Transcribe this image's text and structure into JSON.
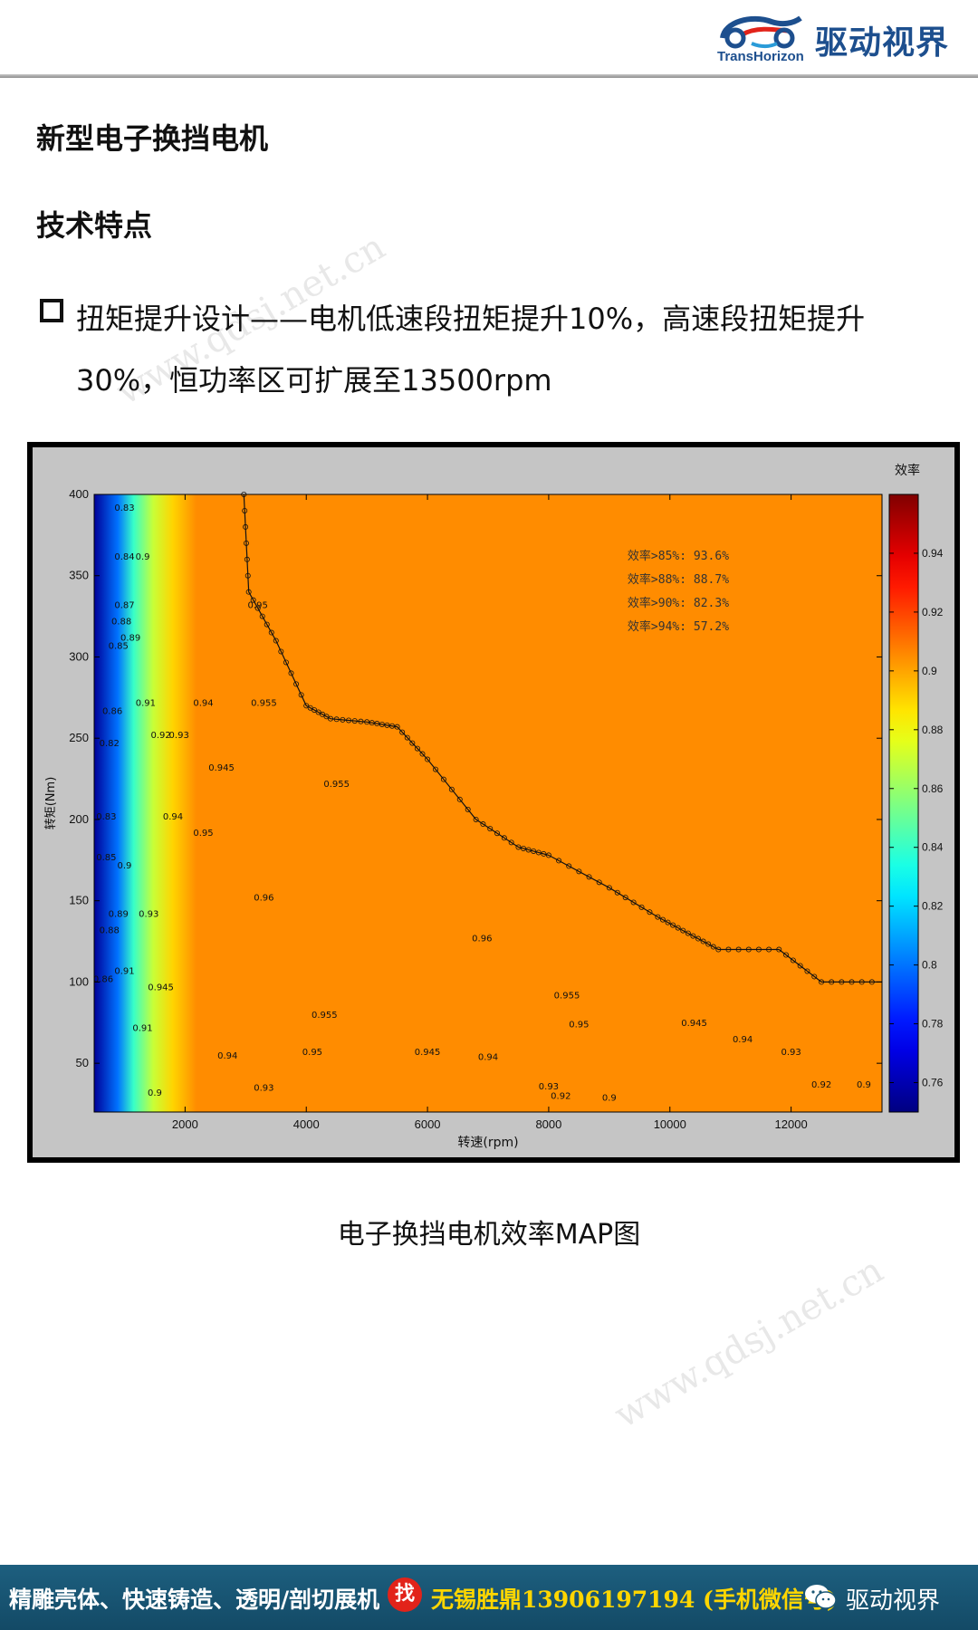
{
  "header": {
    "brand_en": "TransHorizon",
    "brand_cn": "驱动视界",
    "logo_colors": [
      "#1d4f8e",
      "#e2231a",
      "#2a9bd8"
    ]
  },
  "title": "新型电子换挡电机",
  "subtitle": "技术特点",
  "bullet": "扭矩提升设计——电机低速段扭矩提升10%，高速段扭矩提升30%，恒功率区可扩展至13500rpm",
  "watermark": "www.qdsj.net.cn",
  "caption": "电子换挡电机效率MAP图",
  "footer": {
    "left_text": "精雕壳体、快速铸造、透明/剖切展机",
    "badge": "找",
    "right_text": "无锡胜鼎13906197194 (手机微信号)",
    "brand": "驱动视界",
    "icon": "wechat-icon",
    "bg_color": "#1a5674",
    "highlight_color": "#ffd600"
  },
  "chart_data": {
    "type": "heatmap",
    "title": "",
    "xlabel": "转速(rpm)",
    "ylabel": "转矩(Nm)",
    "xlim": [
      500,
      13500
    ],
    "ylim": [
      20,
      400
    ],
    "xticks": [
      2000,
      4000,
      6000,
      8000,
      10000,
      12000
    ],
    "yticks": [
      50,
      100,
      150,
      200,
      250,
      300,
      350,
      400
    ],
    "colorbar": {
      "label": "效率",
      "range": [
        0.75,
        0.96
      ],
      "ticks": [
        0.76,
        0.78,
        0.8,
        0.82,
        0.84,
        0.86,
        0.88,
        0.9,
        0.92,
        0.94
      ],
      "colormap": "jet"
    },
    "annotations": [
      "效率>85%: 93.6%",
      "效率>88%: 88.7%",
      "效率>90%: 82.3%",
      "效率>94%: 57.2%"
    ],
    "boundary": [
      [
        2970,
        400
      ],
      [
        3050,
        340
      ],
      [
        3500,
        310
      ],
      [
        4000,
        270
      ],
      [
        4400,
        262
      ],
      [
        5000,
        260
      ],
      [
        5500,
        257
      ],
      [
        6000,
        237
      ],
      [
        6800,
        200
      ],
      [
        7500,
        183
      ],
      [
        8000,
        178
      ],
      [
        9000,
        158
      ],
      [
        9800,
        140
      ],
      [
        10300,
        130
      ],
      [
        10800,
        120
      ],
      [
        11800,
        120
      ],
      [
        12500,
        100
      ],
      [
        13500,
        100
      ]
    ],
    "efficiency_zones": [
      {
        "efficiency": 0.9,
        "region": [
          [
            500,
            20
          ],
          [
            13500,
            20
          ],
          [
            13500,
            30
          ],
          [
            1500,
            32
          ],
          [
            1100,
            80
          ],
          [
            900,
            400
          ],
          [
            500,
            400
          ]
        ]
      },
      {
        "efficiency": 0.93,
        "region": [
          [
            1200,
            20
          ],
          [
            13500,
            28
          ],
          [
            13500,
            90
          ],
          [
            12500,
            100
          ],
          [
            10800,
            120
          ],
          [
            9000,
            158
          ],
          [
            7000,
            195
          ],
          [
            5000,
            260
          ],
          [
            4000,
            270
          ],
          [
            3050,
            340
          ],
          [
            2970,
            400
          ],
          [
            1700,
            400
          ],
          [
            1400,
            200
          ],
          [
            1300,
            60
          ]
        ]
      },
      {
        "efficiency": 0.94,
        "region": [
          [
            2000,
            60
          ],
          [
            6000,
            52
          ],
          [
            9000,
            58
          ],
          [
            13000,
            68
          ],
          [
            13500,
            80
          ],
          [
            13500,
            98
          ],
          [
            12300,
            102
          ],
          [
            10800,
            120
          ],
          [
            9000,
            158
          ],
          [
            7000,
            195
          ],
          [
            5000,
            260
          ],
          [
            4000,
            270
          ],
          [
            3050,
            330
          ],
          [
            2600,
            300
          ],
          [
            2200,
            200
          ],
          [
            2000,
            100
          ]
        ]
      },
      {
        "efficiency": 0.945,
        "region": [
          [
            2800,
            85
          ],
          [
            5000,
            70
          ],
          [
            8000,
            75
          ],
          [
            10500,
            110
          ],
          [
            10500,
            130
          ],
          [
            9000,
            150
          ],
          [
            7500,
            180
          ],
          [
            6000,
            230
          ],
          [
            5000,
            258
          ],
          [
            4500,
            260
          ],
          [
            3100,
            300
          ],
          [
            2700,
            200
          ]
        ]
      },
      {
        "efficiency": 0.955,
        "region": [
          [
            2900,
            100
          ],
          [
            4000,
            82
          ],
          [
            5500,
            82
          ],
          [
            7000,
            90
          ],
          [
            8800,
            110
          ],
          [
            8600,
            150
          ],
          [
            7500,
            178
          ],
          [
            6500,
            205
          ],
          [
            5800,
            218
          ],
          [
            5000,
            190
          ],
          [
            4200,
            220
          ],
          [
            3600,
            238
          ],
          [
            3100,
            225
          ],
          [
            2900,
            180
          ]
        ]
      },
      {
        "efficiency": 0.96,
        "region": [
          [
            3400,
            130
          ],
          [
            4000,
            125
          ],
          [
            4400,
            140
          ],
          [
            3800,
            170
          ],
          [
            3500,
            182
          ],
          [
            3350,
            160
          ]
        ]
      },
      {
        "efficiency": 0.96,
        "region": [
          [
            6100,
            140
          ],
          [
            6700,
            118
          ],
          [
            7200,
            128
          ],
          [
            7500,
            140
          ],
          [
            7200,
            165
          ],
          [
            6600,
            172
          ],
          [
            6100,
            158
          ]
        ]
      }
    ],
    "contour_labels": [
      {
        "text": "0.9",
        "x": 1500,
        "y": 30
      },
      {
        "text": "0.93",
        "x": 3300,
        "y": 33
      },
      {
        "text": "0.94",
        "x": 2700,
        "y": 53
      },
      {
        "text": "0.95",
        "x": 4100,
        "y": 55
      },
      {
        "text": "0.945",
        "x": 6000,
        "y": 55
      },
      {
        "text": "0.94",
        "x": 7000,
        "y": 52
      },
      {
        "text": "0.93",
        "x": 8000,
        "y": 34
      },
      {
        "text": "0.92",
        "x": 8200,
        "y": 28
      },
      {
        "text": "0.9",
        "x": 9000,
        "y": 27
      },
      {
        "text": "0.95",
        "x": 8500,
        "y": 72
      },
      {
        "text": "0.945",
        "x": 10400,
        "y": 73
      },
      {
        "text": "0.94",
        "x": 11200,
        "y": 63
      },
      {
        "text": "0.93",
        "x": 12000,
        "y": 55
      },
      {
        "text": "0.92",
        "x": 12500,
        "y": 35
      },
      {
        "text": "0.9",
        "x": 13200,
        "y": 35
      },
      {
        "text": "0.955",
        "x": 4300,
        "y": 78
      },
      {
        "text": "0.955",
        "x": 8300,
        "y": 90
      },
      {
        "text": "0.96",
        "x": 3300,
        "y": 150
      },
      {
        "text": "0.96",
        "x": 6900,
        "y": 125
      },
      {
        "text": "0.955",
        "x": 4500,
        "y": 220
      },
      {
        "text": "0.955",
        "x": 3300,
        "y": 270
      },
      {
        "text": "0.95",
        "x": 3200,
        "y": 330
      },
      {
        "text": "0.945",
        "x": 2600,
        "y": 230
      },
      {
        "text": "0.94",
        "x": 2300,
        "y": 270
      },
      {
        "text": "0.93",
        "x": 1900,
        "y": 250
      },
      {
        "text": "0.92",
        "x": 1600,
        "y": 250
      },
      {
        "text": "0.91",
        "x": 1350,
        "y": 270
      },
      {
        "text": "0.9",
        "x": 1300,
        "y": 360
      },
      {
        "text": "0.89",
        "x": 1100,
        "y": 310
      },
      {
        "text": "0.88",
        "x": 950,
        "y": 320
      },
      {
        "text": "0.87",
        "x": 1000,
        "y": 330
      },
      {
        "text": "0.86",
        "x": 800,
        "y": 265
      },
      {
        "text": "0.85",
        "x": 900,
        "y": 305
      },
      {
        "text": "0.84",
        "x": 1000,
        "y": 360
      },
      {
        "text": "0.83",
        "x": 1000,
        "y": 390
      },
      {
        "text": "0.82",
        "x": 750,
        "y": 245
      },
      {
        "text": "0.9",
        "x": 1000,
        "y": 170
      },
      {
        "text": "0.89",
        "x": 900,
        "y": 140
      },
      {
        "text": "0.88",
        "x": 750,
        "y": 130
      },
      {
        "text": "0.91",
        "x": 1000,
        "y": 105
      },
      {
        "text": "0.93",
        "x": 1400,
        "y": 140
      },
      {
        "text": "0.945",
        "x": 1600,
        "y": 95
      },
      {
        "text": "0.94",
        "x": 1800,
        "y": 200
      },
      {
        "text": "0.95",
        "x": 2300,
        "y": 190
      },
      {
        "text": "0.83",
        "x": 700,
        "y": 200
      },
      {
        "text": "0.85",
        "x": 700,
        "y": 175
      },
      {
        "text": "0.86",
        "x": 650,
        "y": 100
      },
      {
        "text": "0.91",
        "x": 1300,
        "y": 70
      }
    ]
  }
}
